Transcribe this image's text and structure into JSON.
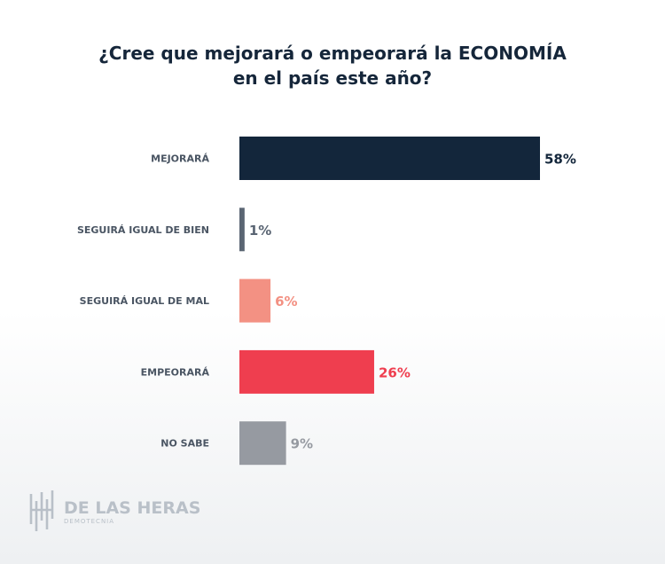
{
  "chart_data": {
    "type": "bar",
    "orientation": "horizontal",
    "title_lines": [
      "¿Cree que mejorará o empeorará la ECONOMÍA",
      "en el país este año?"
    ],
    "categories": [
      "MEJORARÁ",
      "SEGUIRÁ IGUAL DE BIEN",
      "SEGUIRÁ IGUAL DE MAL",
      "EMPEORARÁ",
      "NO SABE"
    ],
    "values": [
      58,
      1,
      6,
      26,
      9
    ],
    "value_labels": [
      "58%",
      "1%",
      "6%",
      "26%",
      "9%"
    ],
    "colors": [
      "#13263b",
      "#5a6573",
      "#f39183",
      "#ef3e4f",
      "#969aa1"
    ],
    "label_colors": [
      "#13263b",
      "#5a6573",
      "#f39183",
      "#ef3e4f",
      "#969aa1"
    ],
    "xlim": [
      0,
      100
    ],
    "grid": false,
    "legend": "none"
  },
  "logo": {
    "name": "DE LAS HERAS",
    "sub": "DEMOTECNIA"
  }
}
